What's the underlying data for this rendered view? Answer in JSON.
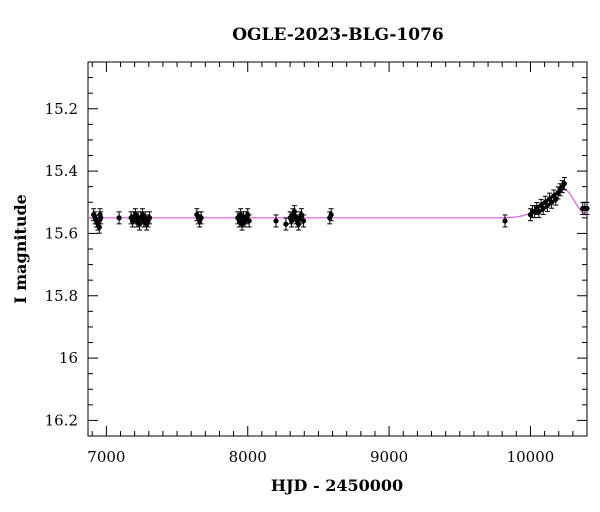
{
  "chart_data": {
    "type": "scatter",
    "title": "OGLE-2023-BLG-1076",
    "xlabel": "HJD - 2450000",
    "ylabel": "I magnitude",
    "xlim": [
      6870,
      10400
    ],
    "ylim": [
      16.25,
      15.05
    ],
    "y_inverted": true,
    "x_ticks": [
      7000,
      8000,
      9000,
      10000
    ],
    "x_tick_labels": [
      "7000",
      "8000",
      "9000",
      "10000"
    ],
    "y_ticks": [
      15.2,
      15.4,
      15.6,
      15.8,
      16.0,
      16.2
    ],
    "y_tick_labels": [
      "15.2",
      "15.4",
      "15.6",
      "15.8",
      "16",
      "16.2"
    ],
    "grid": false,
    "model": {
      "color": "#e05ce0",
      "baseline": 15.55,
      "t0": 10240,
      "peak": 15.46,
      "rise_width": 130,
      "fall_width": 70
    },
    "series": [
      {
        "marker_color": "#000000",
        "x": [
          6910,
          6920,
          6930,
          6940,
          6950,
          6955,
          6960,
          7090,
          7175,
          7185,
          7195,
          7205,
          7215,
          7225,
          7235,
          7245,
          7255,
          7265,
          7275,
          7285,
          7295,
          7305,
          7640,
          7650,
          7660,
          7670,
          7930,
          7940,
          7950,
          7960,
          7970,
          7980,
          7990,
          8000,
          8010,
          8200,
          8270,
          8300,
          8310,
          8320,
          8330,
          8340,
          8350,
          8360,
          8370,
          8380,
          8395,
          8580,
          8590,
          9820,
          10000,
          10015,
          10030,
          10045,
          10060,
          10075,
          10090,
          10105,
          10120,
          10135,
          10150,
          10165,
          10180,
          10195,
          10210,
          10225,
          10240,
          10370,
          10385,
          10400
        ],
        "y": [
          15.54,
          15.55,
          15.56,
          15.57,
          15.58,
          15.54,
          15.55,
          15.55,
          15.55,
          15.56,
          15.55,
          15.54,
          15.56,
          15.55,
          15.57,
          15.55,
          15.54,
          15.56,
          15.55,
          15.57,
          15.56,
          15.55,
          15.54,
          15.55,
          15.56,
          15.55,
          15.55,
          15.56,
          15.54,
          15.57,
          15.55,
          15.56,
          15.55,
          15.54,
          15.56,
          15.56,
          15.57,
          15.55,
          15.56,
          15.54,
          15.53,
          15.55,
          15.56,
          15.57,
          15.55,
          15.54,
          15.56,
          15.55,
          15.54,
          15.56,
          15.54,
          15.53,
          15.53,
          15.52,
          15.53,
          15.51,
          15.52,
          15.5,
          15.51,
          15.49,
          15.5,
          15.48,
          15.49,
          15.47,
          15.46,
          15.45,
          15.44,
          15.52,
          15.52,
          15.52
        ]
      }
    ]
  }
}
